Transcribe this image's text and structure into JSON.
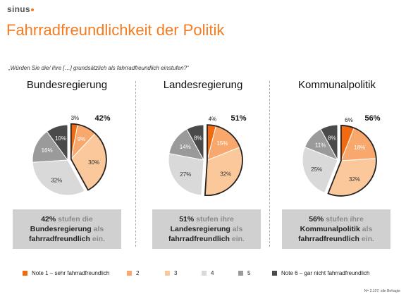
{
  "brand": "sinus",
  "title": "Fahrradfreundlichkeit der Politik",
  "question": "„Würden Sie die/ ihre […] grundsätzlich als fahrradfreundlich einstufen?“",
  "colors": {
    "note1": "#f26a10",
    "note2": "#f9a86d",
    "note3": "#fbc89c",
    "note4": "#d9d9d9",
    "note5": "#9a9a9a",
    "note6": "#4a4a4a",
    "title": "#f47b20"
  },
  "chart_data": [
    {
      "type": "pie",
      "title": "Bundesregierung",
      "categories": [
        "Note 1 – sehr fahrradfreundlich",
        "2",
        "3",
        "4",
        "5",
        "Note 6 – gar nicht fahrradfreundlich"
      ],
      "values": [
        3,
        9,
        30,
        32,
        16,
        10
      ],
      "highlight_total": "42%",
      "box": {
        "p1": "42%",
        "p2": " stufen die",
        "p3": "Bundesregierung",
        "p4": " als",
        "p5": "fahrradfreundlich",
        "p6": " ein."
      }
    },
    {
      "type": "pie",
      "title": "Landesregierung",
      "categories": [
        "Note 1 – sehr fahrradfreundlich",
        "2",
        "3",
        "4",
        "5",
        "Note 6 – gar nicht fahrradfreundlich"
      ],
      "values": [
        4,
        15,
        32,
        27,
        14,
        8
      ],
      "highlight_total": "51%",
      "box": {
        "p1": "51%",
        "p2": " stufen ihre",
        "p3": "Landesregierung",
        "p4": " als",
        "p5": "fahrradfreundlich",
        "p6": " ein."
      }
    },
    {
      "type": "pie",
      "title": "Kommunalpolitik",
      "categories": [
        "Note 1 – sehr fahrradfreundlich",
        "2",
        "3",
        "4",
        "5",
        "Note 6 – gar nicht fahrradfreundlich"
      ],
      "values": [
        6,
        18,
        32,
        25,
        11,
        8
      ],
      "highlight_total": "56%",
      "box": {
        "p1": "56%",
        "p2": " stufen ihre",
        "p3": "Kommunalpolitik",
        "p4": " als",
        "p5": "fahrradfreundlich",
        "p6": " ein."
      }
    }
  ],
  "legend": [
    "Note 1 – sehr fahrradfreundlich",
    "2",
    "3",
    "4",
    "5",
    "Note 6 – gar nicht fahrradfreundlich"
  ],
  "footnote": "N= 2.107; alle Befragte"
}
